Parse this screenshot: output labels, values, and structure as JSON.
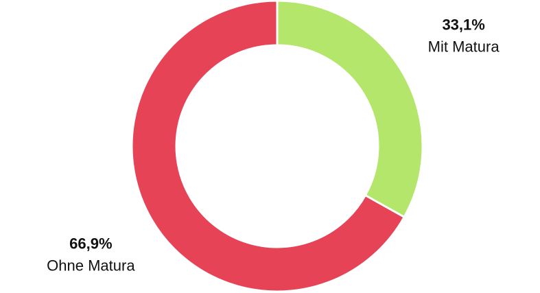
{
  "chart_data": {
    "type": "donut",
    "categories": [
      "Mit Matura",
      "Ohne Matura"
    ],
    "values": [
      33.1,
      66.9
    ],
    "value_labels": [
      "33,1%",
      "66,9%"
    ],
    "colors": [
      "#b3e66a",
      "#e64356"
    ]
  }
}
